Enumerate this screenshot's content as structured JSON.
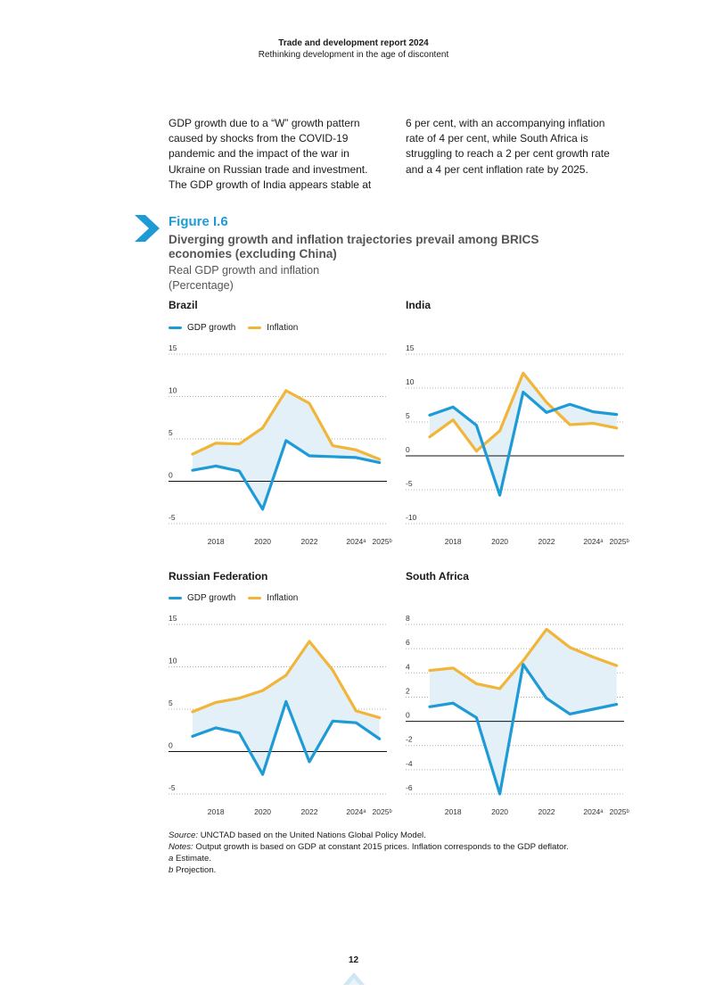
{
  "header": {
    "title": "Trade and development report 2024",
    "subtitle": "Rethinking development in the age of discontent"
  },
  "body_text": {
    "col1": [
      "GDP growth due to a “W” growth pattern",
      "caused by shocks from the COVID-19",
      "pandemic and the impact of the war in",
      "Ukraine on Russian trade and investment.",
      "The GDP growth of India appears stable at"
    ],
    "col2": [
      "6 per cent, with an accompanying inflation",
      "rate of 4 per cent, while South Africa is",
      "struggling to reach a 2 per cent growth rate",
      "and a 4 per cent inflation rate by 2025."
    ]
  },
  "figure": {
    "number": "Figure I.6",
    "title_line1": "Diverging growth and inflation trajectories prevail among BRICS",
    "title_line2": "economies (excluding China)",
    "subtitle": "Real GDP growth and inflation",
    "unit": "(Percentage)"
  },
  "legend": {
    "gdp": "GDP growth",
    "inflation": "Inflation"
  },
  "colors": {
    "gdp": "#1e9bd7",
    "inflation": "#f1b539",
    "fill": "#e3f0f8",
    "accent": "#1e9bd7"
  },
  "chart_data": [
    {
      "type": "line",
      "title": "Brazil",
      "x": [
        2017,
        2018,
        2019,
        2020,
        2021,
        2022,
        2023,
        2024,
        2025
      ],
      "x_ticks": [
        "2018",
        "2020",
        "2022",
        "2024ᵃ",
        "2025ᵇ"
      ],
      "y_ticks": [
        "15",
        "10",
        "5",
        "0",
        "-5"
      ],
      "ylim": [
        -5,
        15
      ],
      "series": [
        {
          "name": "GDP growth",
          "values": [
            1.3,
            1.8,
            1.2,
            -3.3,
            4.8,
            3.0,
            2.9,
            2.8,
            2.2
          ]
        },
        {
          "name": "Inflation",
          "values": [
            3.2,
            4.5,
            4.4,
            6.3,
            10.7,
            9.2,
            4.2,
            3.7,
            2.6
          ]
        }
      ]
    },
    {
      "type": "line",
      "title": "India",
      "x": [
        2017,
        2018,
        2019,
        2020,
        2021,
        2022,
        2023,
        2024,
        2025
      ],
      "x_ticks": [
        "2018",
        "2020",
        "2022",
        "2024ᵃ",
        "2025ᵇ"
      ],
      "y_ticks": [
        "15",
        "10",
        "5",
        "0",
        "-5",
        "-10"
      ],
      "ylim": [
        -10,
        15
      ],
      "series": [
        {
          "name": "GDP growth",
          "values": [
            6.0,
            7.2,
            4.5,
            -5.8,
            9.4,
            6.4,
            7.6,
            6.5,
            6.1
          ]
        },
        {
          "name": "Inflation",
          "values": [
            2.8,
            5.3,
            0.7,
            3.7,
            12.2,
            7.9,
            4.6,
            4.8,
            4.1
          ]
        }
      ]
    },
    {
      "type": "line",
      "title": "Russian Federation",
      "x": [
        2017,
        2018,
        2019,
        2020,
        2021,
        2022,
        2023,
        2024,
        2025
      ],
      "x_ticks": [
        "2018",
        "2020",
        "2022",
        "2024ᵃ",
        "2025ᵇ"
      ],
      "y_ticks": [
        "15",
        "10",
        "5",
        "0",
        "-5"
      ],
      "ylim": [
        -5,
        15
      ],
      "series": [
        {
          "name": "GDP growth",
          "values": [
            1.8,
            2.8,
            2.2,
            -2.7,
            5.9,
            -1.2,
            3.6,
            3.4,
            1.5
          ]
        },
        {
          "name": "Inflation",
          "values": [
            4.7,
            5.8,
            6.3,
            7.2,
            9.0,
            13.0,
            9.6,
            4.8,
            4.0
          ]
        }
      ]
    },
    {
      "type": "line",
      "title": "South Africa",
      "x": [
        2017,
        2018,
        2019,
        2020,
        2021,
        2022,
        2023,
        2024,
        2025
      ],
      "x_ticks": [
        "2018",
        "2020",
        "2022",
        "2024ᵃ",
        "2025ᵇ"
      ],
      "y_ticks": [
        "8",
        "6",
        "4",
        "2",
        "0",
        "-2",
        "-4",
        "-6"
      ],
      "ylim": [
        -6,
        8
      ],
      "series": [
        {
          "name": "GDP growth",
          "values": [
            1.2,
            1.5,
            0.3,
            -6.0,
            4.7,
            1.9,
            0.6,
            1.0,
            1.4
          ]
        },
        {
          "name": "Inflation",
          "values": [
            4.2,
            4.4,
            3.1,
            2.7,
            5.0,
            7.6,
            6.1,
            5.3,
            4.6
          ]
        }
      ]
    }
  ],
  "notes": {
    "source_label": "Source:",
    "source_text": " UNCTAD based on the United Nations Global Policy Model.",
    "notes_label": "Notes:",
    "notes_text": " Output growth is based on GDP at constant 2015 prices. Inflation corresponds to the GDP deflator.",
    "a_label": "a",
    "a_text": " Estimate.",
    "b_label": "b",
    "b_text": " Projection."
  },
  "page_number": "12"
}
